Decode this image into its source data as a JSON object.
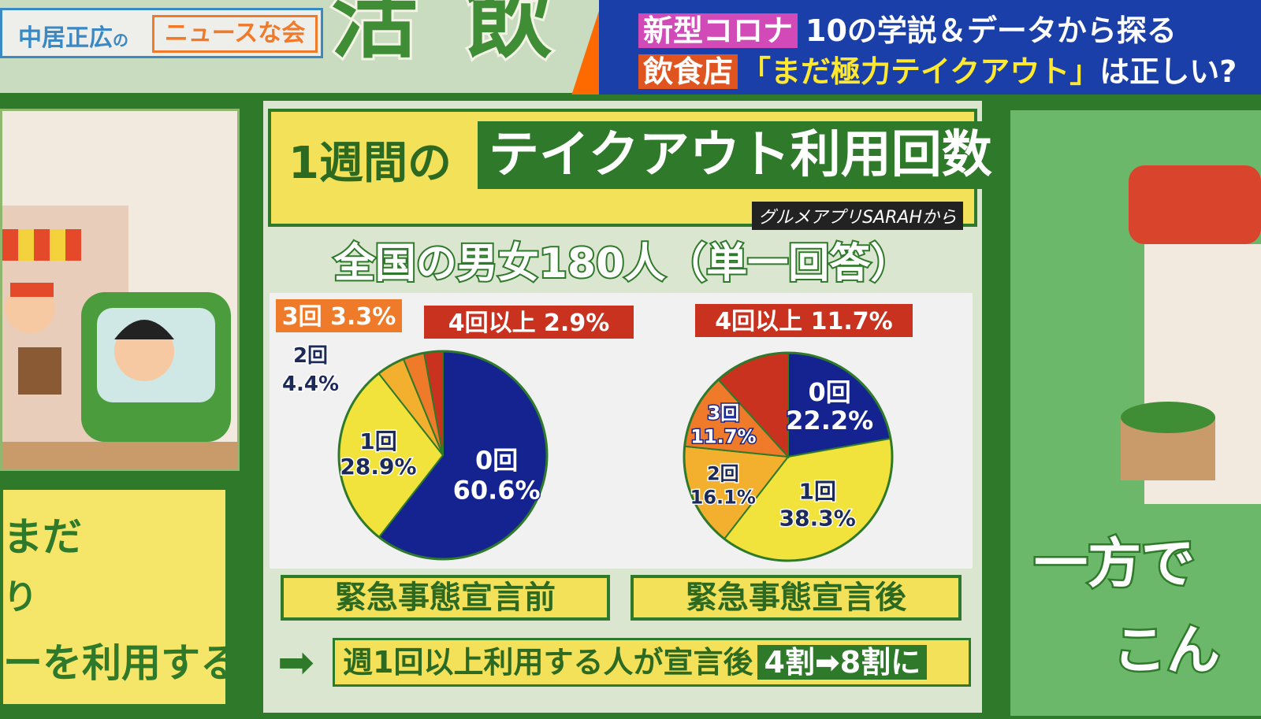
{
  "header": {
    "logo_name": "中居正広",
    "logo_no": "の",
    "show_name": "ニュースな会",
    "bg_text_1": "活",
    "bg_text_2": "飲",
    "banner_tag1": "新型コロナ",
    "banner_text1": "10の学説＆データから探る",
    "banner_tag2": "飲食店",
    "banner_text2": "「まだ極力テイクアウト」",
    "banner_text2_end": "は正しい?"
  },
  "left_panel": {
    "line1": "まだ",
    "line2": "り",
    "line3": "ーを利用する"
  },
  "right_panel": {
    "line1": "一方で",
    "line2": "こん"
  },
  "title": {
    "prefix": "1週間の",
    "main": "テイクアウト利用回数"
  },
  "source": "グルメアプリSARAHから",
  "sample": "全国の男女180人（単一回答）",
  "chart_data": [
    {
      "type": "pie",
      "caption": "緊急事態宣言前",
      "slices": [
        {
          "label": "0回",
          "value": 60.6,
          "display": "60.6%"
        },
        {
          "label": "1回",
          "value": 28.9,
          "display": "28.9%"
        },
        {
          "label": "2回",
          "value": 4.4,
          "display": "4.4%"
        },
        {
          "label": "3回",
          "value": 3.3,
          "display": "3.3%"
        },
        {
          "label": "4回以上",
          "value": 2.9,
          "display": "2.9%"
        }
      ]
    },
    {
      "type": "pie",
      "caption": "緊急事態宣言後",
      "slices": [
        {
          "label": "0回",
          "value": 22.2,
          "display": "22.2%"
        },
        {
          "label": "1回",
          "value": 38.3,
          "display": "38.3%"
        },
        {
          "label": "2回",
          "value": 16.1,
          "display": "16.1%"
        },
        {
          "label": "3回",
          "value": 11.7,
          "display": "11.7%"
        },
        {
          "label": "4回以上",
          "value": 11.7,
          "display": "11.7%"
        }
      ]
    }
  ],
  "slice_colors": [
    "#14238f",
    "#f1e23c",
    "#f2b02e",
    "#ee7a2a",
    "#c8321e"
  ],
  "footer": {
    "arrow": "➡",
    "text": "週1回以上利用する人が宣言後",
    "highlight": "4割➡8割に"
  }
}
